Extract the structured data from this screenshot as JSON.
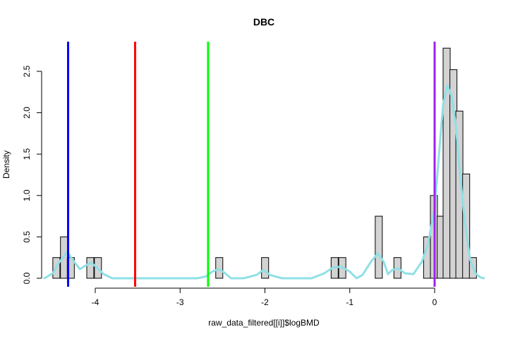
{
  "chart_data": {
    "type": "histogram",
    "title": "DBC",
    "xlabel": "raw_data_filtered[[i]]$logBMD",
    "ylabel": "Density",
    "xlim": [
      -4.6,
      0.58
    ],
    "ylim": [
      0,
      2.9
    ],
    "x_ticks": [
      -4,
      -3,
      -2,
      -1,
      0
    ],
    "y_ticks": [
      0.0,
      0.5,
      1.0,
      1.5,
      2.0,
      2.5
    ],
    "x_tick_labels": [
      "-4",
      "-3",
      "-2",
      "-1",
      "0"
    ],
    "y_tick_labels": [
      "0.0",
      "0.5",
      "1.0",
      "1.5",
      "2.0",
      "2.5"
    ],
    "bin_width": 0.0833,
    "bins": [
      {
        "start": -4.5,
        "density": 0.25
      },
      {
        "start": -4.41,
        "density": 0.5
      },
      {
        "start": -4.33,
        "density": 0.25
      },
      {
        "start": -4.1,
        "density": 0.25
      },
      {
        "start": -4.01,
        "density": 0.25
      },
      {
        "start": -2.58,
        "density": 0.25
      },
      {
        "start": -2.04,
        "density": 0.25
      },
      {
        "start": -1.22,
        "density": 0.25
      },
      {
        "start": -1.13,
        "density": 0.25
      },
      {
        "start": -0.7,
        "density": 0.75
      },
      {
        "start": -0.48,
        "density": 0.25
      },
      {
        "start": -0.13,
        "density": 0.5
      },
      {
        "start": -0.05,
        "density": 1.0
      },
      {
        "start": 0.03,
        "density": 0.75
      },
      {
        "start": 0.1,
        "density": 2.78
      },
      {
        "start": 0.18,
        "density": 2.52
      },
      {
        "start": 0.25,
        "density": 2.02
      },
      {
        "start": 0.33,
        "density": 1.26
      },
      {
        "start": 0.41,
        "density": 0.25
      }
    ],
    "density_curve": {
      "color": "#8fe0e6",
      "x": [
        -4.6,
        -4.5,
        -4.42,
        -4.33,
        -4.25,
        -4.18,
        -4.12,
        -4.05,
        -3.98,
        -3.9,
        -3.8,
        -3.6,
        -2.8,
        -2.7,
        -2.62,
        -2.55,
        -2.48,
        -2.4,
        -2.25,
        -2.1,
        -2.02,
        -1.94,
        -1.8,
        -1.45,
        -1.3,
        -1.2,
        -1.1,
        -1.0,
        -0.92,
        -0.85,
        -0.75,
        -0.67,
        -0.6,
        -0.55,
        -0.5,
        -0.43,
        -0.35,
        -0.25,
        -0.15,
        -0.08,
        0.0,
        0.06,
        0.1,
        0.15,
        0.2,
        0.25,
        0.3,
        0.36,
        0.42,
        0.48,
        0.54,
        0.58
      ],
      "y": [
        0.0,
        0.06,
        0.2,
        0.32,
        0.2,
        0.11,
        0.15,
        0.19,
        0.13,
        0.05,
        0.0,
        0.0,
        0.0,
        0.02,
        0.08,
        0.11,
        0.07,
        0.0,
        0.0,
        0.04,
        0.1,
        0.04,
        0.0,
        0.0,
        0.06,
        0.13,
        0.14,
        0.08,
        0.0,
        0.04,
        0.2,
        0.3,
        0.2,
        0.05,
        0.1,
        0.12,
        0.06,
        0.05,
        0.2,
        0.4,
        0.85,
        1.6,
        2.1,
        2.33,
        2.2,
        1.85,
        1.25,
        0.65,
        0.22,
        0.06,
        0.01,
        0.0
      ]
    },
    "vertical_lines": [
      {
        "x": -4.32,
        "color": "#0000ff"
      },
      {
        "x": -3.53,
        "color": "#ff0000"
      },
      {
        "x": -2.67,
        "color": "#00ff00"
      },
      {
        "x": 0.0,
        "color": "#a020f0"
      }
    ],
    "bar_fill": "#d3d3d3",
    "bar_stroke": "#000000",
    "grid": false,
    "legend": "none"
  }
}
